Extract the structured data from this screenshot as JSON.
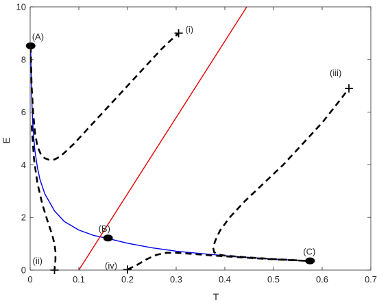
{
  "chart_data": {
    "type": "line",
    "title": "",
    "xlabel": "T",
    "ylabel": "E",
    "xlim": [
      0,
      0.7
    ],
    "ylim": [
      0,
      10
    ],
    "grid": false,
    "x_ticks": [
      0,
      0.1,
      0.2,
      0.3,
      0.4,
      0.5,
      0.6,
      0.7
    ],
    "x_tick_labels": [
      "0",
      "0.1",
      "0.2",
      "0.3",
      "0.4",
      "0.5",
      "0.6",
      "0.7"
    ],
    "y_ticks": [
      0,
      2,
      4,
      6,
      8,
      10
    ],
    "y_tick_labels": [
      "0",
      "2",
      "4",
      "6",
      "8",
      "10"
    ],
    "colors": {
      "blue": "#0000ee",
      "red": "#e60000",
      "black": "#000000"
    },
    "series": [
      {
        "style": "solid",
        "color": "#0000ee",
        "x": [
          0.001,
          0.002,
          0.003,
          0.004,
          0.005,
          0.007,
          0.01,
          0.015,
          0.02,
          0.03,
          0.05,
          0.07,
          0.1,
          0.13,
          0.16,
          0.2,
          0.25,
          0.3,
          0.35,
          0.4,
          0.45,
          0.5,
          0.55,
          0.575
        ],
        "y": [
          8.5,
          7.6,
          6.8,
          6.2,
          5.7,
          5.1,
          4.5,
          3.9,
          3.45,
          2.9,
          2.25,
          1.85,
          1.52,
          1.32,
          1.2,
          1.02,
          0.85,
          0.72,
          0.63,
          0.55,
          0.48,
          0.42,
          0.37,
          0.35
        ]
      },
      {
        "style": "solid",
        "color": "#e60000",
        "x": [
          0.1,
          0.445
        ],
        "y": [
          0,
          10
        ]
      },
      {
        "style": "dashed",
        "color": "#000000",
        "name": "(i)",
        "x": [
          0.001,
          0.003,
          0.006,
          0.01,
          0.015,
          0.022,
          0.03,
          0.04,
          0.05,
          0.06,
          0.07,
          0.09,
          0.12,
          0.15,
          0.18,
          0.21,
          0.24,
          0.27,
          0.29,
          0.305
        ],
        "y": [
          8.5,
          7.0,
          6.0,
          5.2,
          4.7,
          4.4,
          4.25,
          4.18,
          4.2,
          4.3,
          4.45,
          4.8,
          5.4,
          6.0,
          6.6,
          7.2,
          7.8,
          8.4,
          8.75,
          9.0
        ]
      },
      {
        "style": "dashed",
        "color": "#000000",
        "name": "(ii)",
        "x": [
          0.003,
          0.008,
          0.015,
          0.025,
          0.035,
          0.045,
          0.05,
          0.052,
          0.052,
          0.051,
          0.05
        ],
        "y": [
          5.5,
          4.2,
          3.3,
          2.5,
          1.9,
          1.35,
          1.0,
          0.7,
          0.4,
          0.15,
          0.0
        ]
      },
      {
        "style": "dashed",
        "color": "#000000",
        "name": "(iii)",
        "x": [
          0.57,
          0.5,
          0.45,
          0.4,
          0.385,
          0.378,
          0.376,
          0.38,
          0.39,
          0.41,
          0.44,
          0.48,
          0.52,
          0.56,
          0.6,
          0.63,
          0.655
        ],
        "y": [
          0.35,
          0.42,
          0.48,
          0.55,
          0.6,
          0.68,
          0.85,
          1.1,
          1.5,
          2.0,
          2.6,
          3.3,
          4.0,
          4.8,
          5.6,
          6.3,
          6.9
        ]
      },
      {
        "style": "dashed",
        "color": "#000000",
        "name": "(iv)",
        "x": [
          0.2,
          0.22,
          0.24,
          0.26,
          0.28,
          0.3,
          0.33,
          0.37,
          0.42,
          0.47,
          0.52,
          0.57
        ],
        "y": [
          0.02,
          0.2,
          0.42,
          0.58,
          0.66,
          0.66,
          0.62,
          0.56,
          0.5,
          0.44,
          0.39,
          0.35
        ]
      }
    ],
    "equilibria": [
      {
        "label": "(A)",
        "x": 0.001,
        "y": 8.52
      },
      {
        "label": "(B)",
        "x": 0.16,
        "y": 1.22
      },
      {
        "label": "(C)",
        "x": 0.575,
        "y": 0.35
      }
    ],
    "start_points": [
      {
        "label": "(i)",
        "x": 0.305,
        "y": 9.0
      },
      {
        "label": "(ii)",
        "x": 0.05,
        "y": 0.0
      },
      {
        "label": "(iii)",
        "x": 0.655,
        "y": 6.9
      },
      {
        "label": "(iv)",
        "x": 0.2,
        "y": 0.02
      }
    ]
  }
}
